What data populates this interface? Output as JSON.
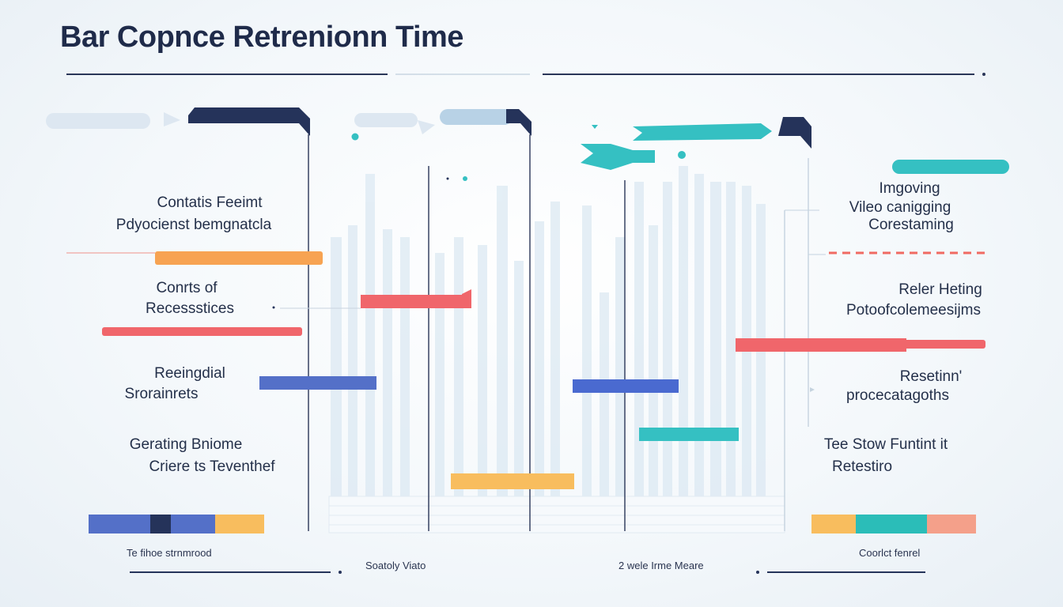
{
  "title": "Bar Copnce Retrenionn Time",
  "colors": {
    "navy": "#25335a",
    "teal": "#35c0c2",
    "orange": "#f7a352",
    "coral": "#f0666b",
    "blue": "#5470c8",
    "yellow": "#f8bd5e",
    "pale_blue": "#b8d2e6"
  },
  "chart_data": {
    "type": "bar",
    "title": "Bar Copnce Retrenionn Time",
    "left_labels": [
      [
        "Contatis Feeimt",
        "Pdyocienst bemgnatcla"
      ],
      [
        "Conrts of",
        "Recessstices"
      ],
      [
        "Reeingdial",
        "Srorainrets"
      ],
      [
        "Gerating Bniome",
        "Criere ts Teventhef"
      ]
    ],
    "right_labels": [
      [
        "Imgoving",
        "Vileo canigging",
        "Corestaming"
      ],
      [
        "Reler Heting",
        "Potoofcolemeesijms"
      ],
      [
        "Resetinn'",
        "procecatagoths"
      ],
      [
        "Tee Stow Funtint it",
        "Retestiro"
      ]
    ],
    "footer_labels": [
      "Te fihoe strnmrood",
      "Soatoly Viato",
      "2 wele Irme Meare",
      "Coorlct fenrel"
    ],
    "legend_left": [
      "#5470c8",
      "#25335a",
      "#5470c8",
      "#f8bd5e"
    ],
    "legend_right": [
      "#f8bd5e",
      "#2bbdb8",
      "#f4a08a"
    ]
  }
}
